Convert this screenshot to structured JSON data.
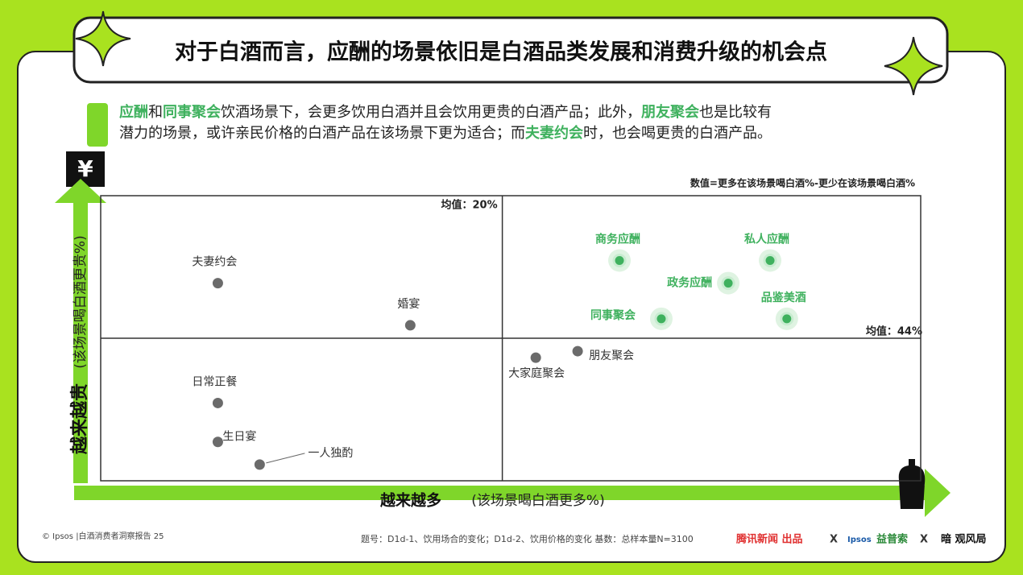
{
  "chart_data": {
    "type": "scatter",
    "title": "对于白酒而言，应酬的场景依旧是白酒品类发展和消费升级的机会点",
    "subtitle_lines": [
      [
        {
          "text": "应酬",
          "highlight": true
        },
        {
          "text": "和",
          "highlight": false
        },
        {
          "text": "同事聚会",
          "highlight": true
        },
        {
          "text": "饮酒场景下，会更多饮用白酒并且会饮用更贵的白酒产品；此外，",
          "highlight": false
        },
        {
          "text": "朋友聚会",
          "highlight": true
        },
        {
          "text": "也是比较有",
          "highlight": false
        }
      ],
      [
        {
          "text": "潜力的场景，或许亲民价格的白酒产品在该场景下更为适合；而",
          "highlight": false
        },
        {
          "text": "夫妻约会",
          "highlight": true
        },
        {
          "text": "时，也会喝更贵的白酒产品。",
          "highlight": false
        }
      ]
    ],
    "note": "数值=更多在该场景喝白酒%-更少在该场景喝白酒%",
    "icon_label": "¥",
    "x_label": "越来越多",
    "x_label_sub": "(该场景喝白酒更多%)",
    "y_label": "越来越贵",
    "y_label_sub": "(该场景喝白酒更贵%)",
    "xmean": 20,
    "xmean_label": "均值：20%",
    "ymean": 44,
    "ymean_label": "均值：44%",
    "xlim": [
      -28,
      70
    ],
    "ylim": [
      0,
      88
    ],
    "default_color": "#6b6b6b",
    "highlight_color": "#3fb15e",
    "points": [
      {
        "label": "夫妻约会",
        "x": -14,
        "y": 61,
        "highlight": false
      },
      {
        "label": "婚宴",
        "x": 9,
        "y": 48,
        "highlight": false
      },
      {
        "label": "日常正餐",
        "x": -14,
        "y": 24,
        "highlight": false
      },
      {
        "label": "生日宴",
        "x": -14,
        "y": 12,
        "highlight": false
      },
      {
        "label": "一人独酌",
        "x": -9,
        "y": 5,
        "highlight": false
      },
      {
        "label": "大家庭聚会",
        "x": 24,
        "y": 38,
        "highlight": false
      },
      {
        "label": "朋友聚会",
        "x": 29,
        "y": 40,
        "highlight": false
      },
      {
        "label": "商务应酬",
        "x": 34,
        "y": 68,
        "highlight": true
      },
      {
        "label": "政务应酬",
        "x": 47,
        "y": 61,
        "highlight": true
      },
      {
        "label": "私人应酬",
        "x": 52,
        "y": 68,
        "highlight": true
      },
      {
        "label": "同事聚会",
        "x": 39,
        "y": 50,
        "highlight": true
      },
      {
        "label": "品鉴美酒",
        "x": 54,
        "y": 50,
        "highlight": true
      }
    ],
    "footer_left": "© Ipsos |白酒消费者洞察报告 25",
    "footer_source": "题号：D1d-1、饮用场合的变化；D1d-2、饮用价格的变化  基数：总样本量N=3100",
    "logos": [
      "腾讯新闻 出品",
      "X",
      "Ipsos",
      "益普索",
      "X",
      "暗 观风局"
    ]
  }
}
